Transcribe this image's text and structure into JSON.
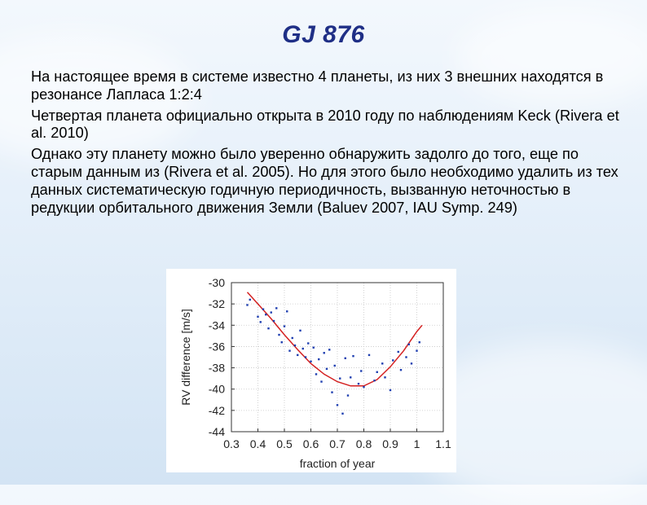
{
  "slide": {
    "title": "GJ 876",
    "paragraphs": [
      "На настоящее время в системе известно 4 планеты, из них 3 внешних находятся в резонансе Лапласа 1:2:4",
      "Четвертая планета официально открыта в 2010 году по наблюдениям Keck (Rivera et al. 2010)",
      "Однако эту планету можно было уверенно обнаружить задолго до того, еще по старым данным из (Rivera et al. 2005). Но для этого было необходимо удалить из тех данных систематическую годичную периодичность, вызванную неточностью в редукции орбитального движения Земли (Baluev 2007, IAU Symp. 249)"
    ]
  },
  "chart_data": {
    "type": "scatter",
    "title": "",
    "xlabel": "fraction of year",
    "ylabel": "RV difference [m/s]",
    "xlim": [
      0.3,
      1.1
    ],
    "ylim": [
      -44,
      -30
    ],
    "xticks": [
      0.3,
      0.4,
      0.5,
      0.6,
      0.7,
      0.8,
      0.9,
      1,
      1.1
    ],
    "yticks": [
      -30,
      -32,
      -34,
      -36,
      -38,
      -40,
      -42,
      -44
    ],
    "grid": true,
    "point_color": "#1f3fb0",
    "curve_color": "#d42020",
    "fit_curve": {
      "x": [
        0.36,
        0.4,
        0.45,
        0.5,
        0.55,
        0.6,
        0.65,
        0.7,
        0.75,
        0.8,
        0.85,
        0.9,
        0.95,
        1.0,
        1.02
      ],
      "y": [
        -30.9,
        -32.0,
        -33.4,
        -34.9,
        -36.3,
        -37.6,
        -38.6,
        -39.3,
        -39.7,
        -39.7,
        -39.1,
        -37.9,
        -36.4,
        -34.6,
        -34.0
      ]
    },
    "points": [
      {
        "x": 0.36,
        "y": -32.1
      },
      {
        "x": 0.37,
        "y": -31.6
      },
      {
        "x": 0.4,
        "y": -33.2
      },
      {
        "x": 0.41,
        "y": -33.7
      },
      {
        "x": 0.42,
        "y": -32.5
      },
      {
        "x": 0.43,
        "y": -33.0
      },
      {
        "x": 0.44,
        "y": -34.3
      },
      {
        "x": 0.45,
        "y": -32.8
      },
      {
        "x": 0.46,
        "y": -33.6
      },
      {
        "x": 0.47,
        "y": -32.4
      },
      {
        "x": 0.48,
        "y": -34.9
      },
      {
        "x": 0.49,
        "y": -35.6
      },
      {
        "x": 0.5,
        "y": -34.1
      },
      {
        "x": 0.51,
        "y": -32.7
      },
      {
        "x": 0.52,
        "y": -36.4
      },
      {
        "x": 0.53,
        "y": -35.2
      },
      {
        "x": 0.54,
        "y": -35.9
      },
      {
        "x": 0.55,
        "y": -36.8
      },
      {
        "x": 0.56,
        "y": -34.5
      },
      {
        "x": 0.57,
        "y": -36.2
      },
      {
        "x": 0.58,
        "y": -37.0
      },
      {
        "x": 0.59,
        "y": -35.7
      },
      {
        "x": 0.6,
        "y": -37.4
      },
      {
        "x": 0.61,
        "y": -36.1
      },
      {
        "x": 0.62,
        "y": -38.6
      },
      {
        "x": 0.63,
        "y": -37.2
      },
      {
        "x": 0.64,
        "y": -39.3
      },
      {
        "x": 0.65,
        "y": -36.6
      },
      {
        "x": 0.66,
        "y": -38.1
      },
      {
        "x": 0.67,
        "y": -36.3
      },
      {
        "x": 0.68,
        "y": -40.3
      },
      {
        "x": 0.69,
        "y": -37.8
      },
      {
        "x": 0.7,
        "y": -41.5
      },
      {
        "x": 0.71,
        "y": -39.0
      },
      {
        "x": 0.72,
        "y": -42.3
      },
      {
        "x": 0.73,
        "y": -37.1
      },
      {
        "x": 0.74,
        "y": -40.6
      },
      {
        "x": 0.75,
        "y": -38.9
      },
      {
        "x": 0.76,
        "y": -36.9
      },
      {
        "x": 0.78,
        "y": -39.5
      },
      {
        "x": 0.79,
        "y": -38.3
      },
      {
        "x": 0.8,
        "y": -39.8
      },
      {
        "x": 0.82,
        "y": -36.8
      },
      {
        "x": 0.84,
        "y": -39.2
      },
      {
        "x": 0.85,
        "y": -38.4
      },
      {
        "x": 0.87,
        "y": -37.6
      },
      {
        "x": 0.88,
        "y": -38.9
      },
      {
        "x": 0.9,
        "y": -40.1
      },
      {
        "x": 0.91,
        "y": -37.3
      },
      {
        "x": 0.93,
        "y": -36.5
      },
      {
        "x": 0.94,
        "y": -38.2
      },
      {
        "x": 0.96,
        "y": -37.0
      },
      {
        "x": 0.97,
        "y": -35.8
      },
      {
        "x": 0.98,
        "y": -37.6
      },
      {
        "x": 1.0,
        "y": -36.4
      },
      {
        "x": 1.01,
        "y": -35.6
      }
    ]
  }
}
